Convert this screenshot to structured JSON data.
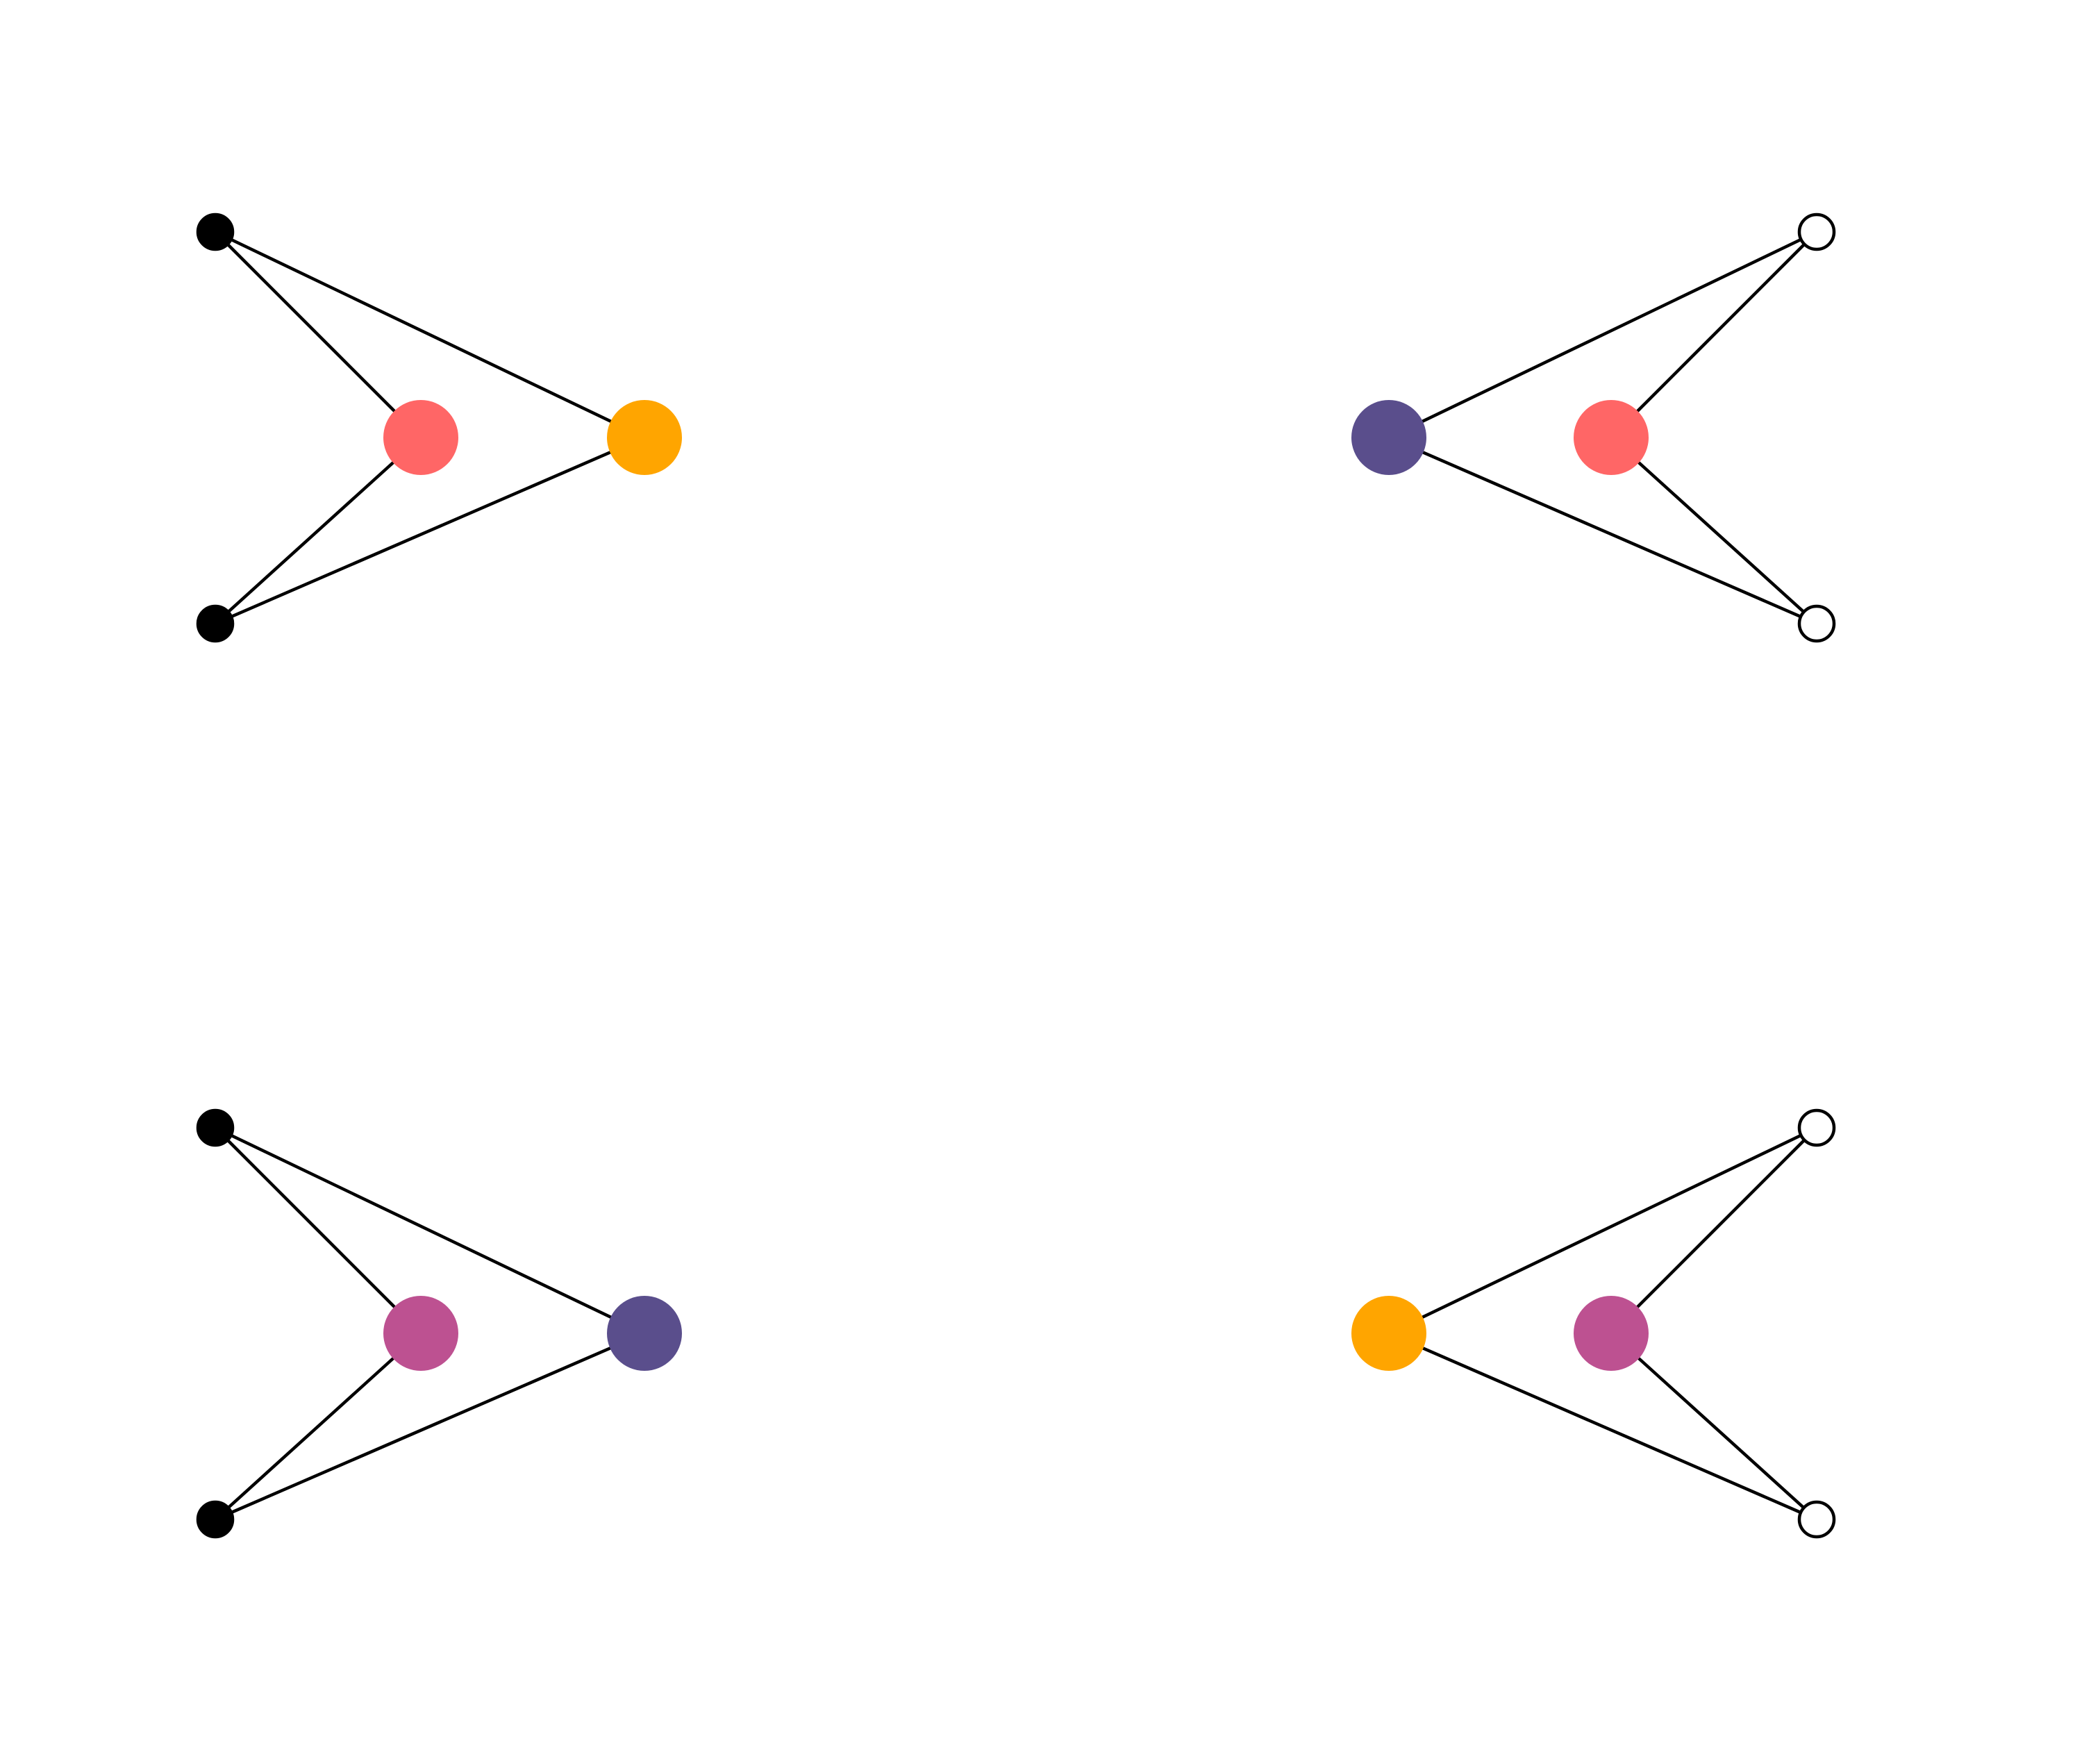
{
  "colors": {
    "background": "#ffffff",
    "edge": "#000000",
    "coral": "#ff6666",
    "orange": "#ffa500",
    "navy": "#5a4e8c",
    "magenta": "#bd5191",
    "filled_endpoint": "#000000",
    "open_endpoint": "#ffffff"
  },
  "diagrams": [
    {
      "name": "top-left",
      "orientation": "left",
      "endpoint_style": "filled",
      "inner_hub_color": "coral",
      "outer_hub_color": "orange"
    },
    {
      "name": "top-right",
      "orientation": "right",
      "endpoint_style": "open",
      "inner_hub_color": "coral",
      "outer_hub_color": "navy"
    },
    {
      "name": "bottom-left",
      "orientation": "left",
      "endpoint_style": "filled",
      "inner_hub_color": "magenta",
      "outer_hub_color": "navy"
    },
    {
      "name": "bottom-right",
      "orientation": "right",
      "endpoint_style": "open",
      "inner_hub_color": "magenta",
      "outer_hub_color": "orange"
    }
  ]
}
